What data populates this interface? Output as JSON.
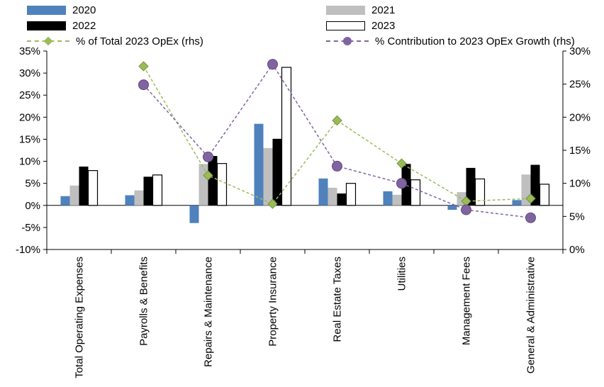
{
  "legend": {
    "items": [
      {
        "label": "2020",
        "type": "bar",
        "color": "#4F81BD"
      },
      {
        "label": "2021",
        "type": "bar",
        "color": "#BFBFBF"
      },
      {
        "label": "2022",
        "type": "bar",
        "color": "#000000"
      },
      {
        "label": "2023",
        "type": "bar",
        "color": "#FFFFFF",
        "border": "#000000"
      },
      {
        "label": "% of Total 2023 OpEx (rhs)",
        "type": "line",
        "marker": "diamond",
        "color": "#9BBB59"
      },
      {
        "label": "% Contribution to 2023 OpEx Growth (rhs)",
        "type": "line",
        "marker": "circle",
        "color": "#8064A2"
      }
    ]
  },
  "chart_data": {
    "type": "bar",
    "title": "",
    "legend_position": "top",
    "grid": false,
    "categories": [
      "Total Operating Expenses",
      "Payrolls & Benefits",
      "Repairs & Maintenance",
      "Property Insurance",
      "Real Estate Taxes",
      "Utilities",
      "Management Fees",
      "General & Administrative"
    ],
    "bar_series": [
      {
        "name": "2020",
        "axis": "left",
        "color": "#4F81BD",
        "values": [
          2.1,
          2.3,
          -4.0,
          18.5,
          6.1,
          3.2,
          -1.0,
          1.2
        ]
      },
      {
        "name": "2021",
        "axis": "left",
        "color": "#BFBFBF",
        "values": [
          4.5,
          3.4,
          9.4,
          13.0,
          4.0,
          2.4,
          3.0,
          7.0
        ]
      },
      {
        "name": "2022",
        "axis": "left",
        "color": "#000000",
        "values": [
          8.8,
          6.5,
          11.2,
          15.1,
          2.7,
          9.4,
          8.5,
          9.2
        ]
      },
      {
        "name": "2023",
        "axis": "left",
        "color": "#FFFFFF",
        "border": "#000000",
        "values": [
          7.9,
          6.9,
          9.5,
          31.3,
          5.0,
          5.8,
          6.0,
          4.8
        ]
      }
    ],
    "line_series": [
      {
        "name": "% of Total 2023 OpEx (rhs)",
        "axis": "right",
        "color": "#9BBB59",
        "marker": "diamond",
        "marker_border": "#77933C",
        "values": [
          null,
          27.7,
          11.2,
          6.9,
          19.5,
          13.0,
          7.3,
          7.7
        ]
      },
      {
        "name": "% Contribution to 2023 OpEx Growth (rhs)",
        "axis": "right",
        "color": "#8064A2",
        "marker": "circle",
        "marker_border": "#604A7B",
        "values": [
          null,
          24.9,
          14.0,
          28.0,
          12.6,
          10.0,
          6.0,
          4.8
        ]
      }
    ],
    "left_axis": {
      "min": -10,
      "max": 35,
      "step": 5,
      "tick_values": [
        35,
        30,
        25,
        20,
        15,
        10,
        5,
        0,
        -5,
        -10
      ],
      "tick_labels": [
        "35%",
        "30%",
        "25%",
        "20%",
        "15%",
        "10%",
        "5%",
        "0%",
        "-5%",
        "-10%"
      ]
    },
    "right_axis": {
      "min": 0,
      "max": 30,
      "step": 5,
      "tick_values": [
        30,
        25,
        20,
        15,
        10,
        5,
        0
      ],
      "tick_labels": [
        "30%",
        "25%",
        "20%",
        "15%",
        "10%",
        "5%",
        "0%"
      ]
    }
  }
}
